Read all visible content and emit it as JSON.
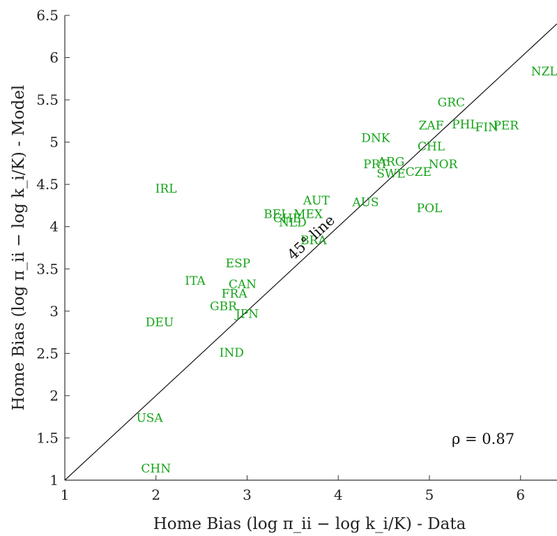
{
  "chart_data": {
    "type": "scatter",
    "xlabel": "Home Bias (log π_ii − log k_i/K) - Data",
    "ylabel": "Home Bias (log π_ii − log k_i/K) - Model",
    "xlim": [
      1,
      6.4
    ],
    "ylim": [
      1,
      6.5
    ],
    "xticks": [
      "1",
      "2",
      "3",
      "4",
      "5",
      "6"
    ],
    "yticks": [
      "1",
      "1.5",
      "2",
      "2.5",
      "3",
      "3.5",
      "4",
      "4.5",
      "5",
      "5.5",
      "6",
      "6.5"
    ],
    "grid": false,
    "reference_line_label": "45° line",
    "correlation_label": "ρ = 0.87",
    "point_color": "#17a31a",
    "points": [
      {
        "label": "NZL",
        "x": 6.26,
        "y": 5.84
      },
      {
        "label": "GRC",
        "x": 5.24,
        "y": 5.47
      },
      {
        "label": "ZAF",
        "x": 5.02,
        "y": 5.2
      },
      {
        "label": "PHL",
        "x": 5.39,
        "y": 5.21
      },
      {
        "label": "FIN",
        "x": 5.63,
        "y": 5.18
      },
      {
        "label": "PER",
        "x": 5.84,
        "y": 5.2
      },
      {
        "label": "DNK",
        "x": 4.41,
        "y": 5.05
      },
      {
        "label": "CHL",
        "x": 5.02,
        "y": 4.95
      },
      {
        "label": "ARG",
        "x": 4.58,
        "y": 4.77
      },
      {
        "label": "NOR",
        "x": 5.15,
        "y": 4.74
      },
      {
        "label": "PRT",
        "x": 4.41,
        "y": 4.74
      },
      {
        "label": "CZE",
        "x": 4.88,
        "y": 4.65
      },
      {
        "label": "SWE",
        "x": 4.58,
        "y": 4.63
      },
      {
        "label": "IRL",
        "x": 2.11,
        "y": 4.45
      },
      {
        "label": "AUT",
        "x": 3.76,
        "y": 4.31
      },
      {
        "label": "AUS",
        "x": 4.3,
        "y": 4.29
      },
      {
        "label": "POL",
        "x": 5.0,
        "y": 4.22
      },
      {
        "label": "BEL",
        "x": 3.32,
        "y": 4.15
      },
      {
        "label": "MEX",
        "x": 3.67,
        "y": 4.15
      },
      {
        "label": "CHE",
        "x": 3.44,
        "y": 4.1
      },
      {
        "label": "NLD",
        "x": 3.5,
        "y": 4.05
      },
      {
        "label": "BRA",
        "x": 3.73,
        "y": 3.84
      },
      {
        "label": "ESP",
        "x": 2.9,
        "y": 3.57
      },
      {
        "label": "ITA",
        "x": 2.43,
        "y": 3.36
      },
      {
        "label": "CAN",
        "x": 2.95,
        "y": 3.32
      },
      {
        "label": "FRA",
        "x": 2.86,
        "y": 3.21
      },
      {
        "label": "GBR",
        "x": 2.74,
        "y": 3.06
      },
      {
        "label": "JPN",
        "x": 3.0,
        "y": 2.97
      },
      {
        "label": "DEU",
        "x": 2.04,
        "y": 2.87
      },
      {
        "label": "IND",
        "x": 2.83,
        "y": 2.51
      },
      {
        "label": "USA",
        "x": 1.93,
        "y": 1.74
      },
      {
        "label": "CHN",
        "x": 2.0,
        "y": 1.14
      }
    ]
  }
}
